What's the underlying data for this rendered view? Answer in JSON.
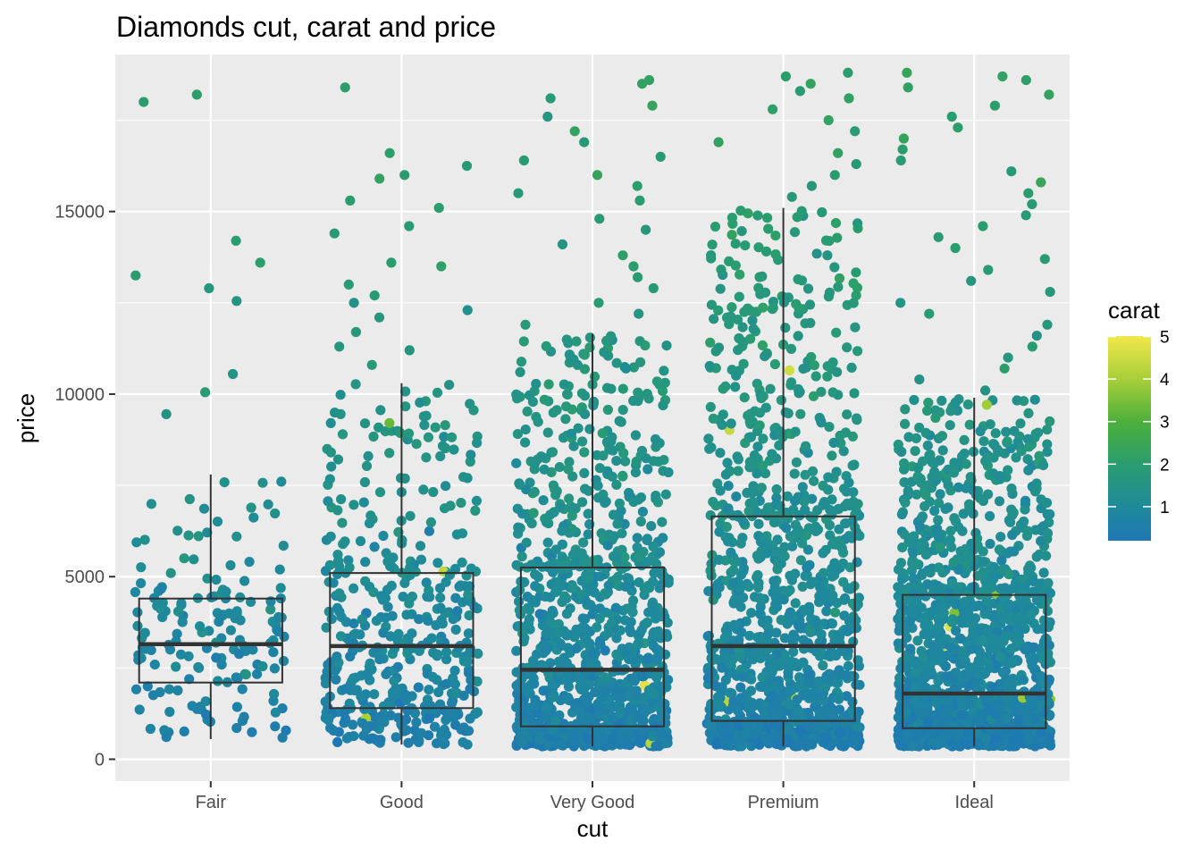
{
  "chart_data": {
    "type": "boxplot-jitter",
    "title": "Diamonds cut, carat and price",
    "xlabel": "cut",
    "ylabel": "price",
    "categories": [
      "Fair",
      "Good",
      "Very Good",
      "Premium",
      "Ideal"
    ],
    "ylim": [
      -600,
      19300
    ],
    "yticks": [
      0,
      5000,
      10000,
      15000
    ],
    "grid": true,
    "boxes": [
      {
        "category": "Fair",
        "whisker_low": 550,
        "q1": 2100,
        "median": 3150,
        "q3": 4400,
        "whisker_high": 7800
      },
      {
        "category": "Good",
        "whisker_low": 400,
        "q1": 1400,
        "median": 3100,
        "q3": 5100,
        "whisker_high": 10300
      },
      {
        "category": "Very Good",
        "whisker_low": 350,
        "q1": 900,
        "median": 2450,
        "q3": 5250,
        "whisker_high": 11650
      },
      {
        "category": "Premium",
        "whisker_low": 350,
        "q1": 1050,
        "median": 3100,
        "q3": 6650,
        "whisker_high": 15100
      },
      {
        "category": "Ideal",
        "whisker_low": 350,
        "q1": 850,
        "median": 1800,
        "q3": 4500,
        "whisker_high": 9900
      }
    ],
    "jitter": {
      "point_counts": [
        160,
        440,
        1200,
        1300,
        1700
      ],
      "outliers": [
        {
          "category": "Fair",
          "prices": [
            18000,
            18200,
            14200,
            13600,
            13250,
            12900,
            12550,
            10550,
            10050,
            9450
          ]
        },
        {
          "category": "Good",
          "prices": [
            18400,
            16600,
            16250,
            16000,
            15900,
            15300,
            15100,
            14600,
            14400,
            13600,
            13500,
            13000,
            12700,
            12500,
            12300,
            12100,
            11700,
            11300,
            11200,
            10800
          ]
        },
        {
          "category": "Very Good",
          "prices": [
            18600,
            18500,
            18100,
            17900,
            17600,
            17200,
            16900,
            16500,
            16400,
            16000,
            15700,
            15500,
            15300,
            14800,
            14500,
            14100,
            13800,
            13500,
            13200,
            12900,
            12500,
            12200,
            11900
          ]
        },
        {
          "category": "Premium",
          "prices": [
            18800,
            18700,
            18500,
            18300,
            18100,
            17800,
            17500,
            17200,
            16900,
            16600,
            16300,
            16000,
            15700,
            15400
          ]
        },
        {
          "category": "Ideal",
          "prices": [
            18800,
            18700,
            18600,
            18400,
            18200,
            17900,
            17600,
            17300,
            17000,
            16700,
            16400,
            16100,
            15800,
            15500,
            15200,
            14900,
            14600,
            14300,
            14000,
            13700,
            13400,
            13100,
            12800,
            12500,
            12200,
            11900,
            11600,
            11300,
            11000,
            10700,
            10400,
            10100
          ]
        }
      ]
    },
    "color_scale": {
      "title": "carat",
      "min": 0.2,
      "max": 5.01,
      "ticks": [
        1,
        2,
        3,
        4,
        5
      ],
      "stops": [
        {
          "value": 0.2,
          "color": "#1F77B4"
        },
        {
          "value": 1.0,
          "color": "#1F8A9A"
        },
        {
          "value": 2.0,
          "color": "#2A9D6E"
        },
        {
          "value": 3.0,
          "color": "#4CAF3A"
        },
        {
          "value": 4.0,
          "color": "#A8CF3A"
        },
        {
          "value": 5.01,
          "color": "#F2E74A"
        }
      ]
    }
  }
}
